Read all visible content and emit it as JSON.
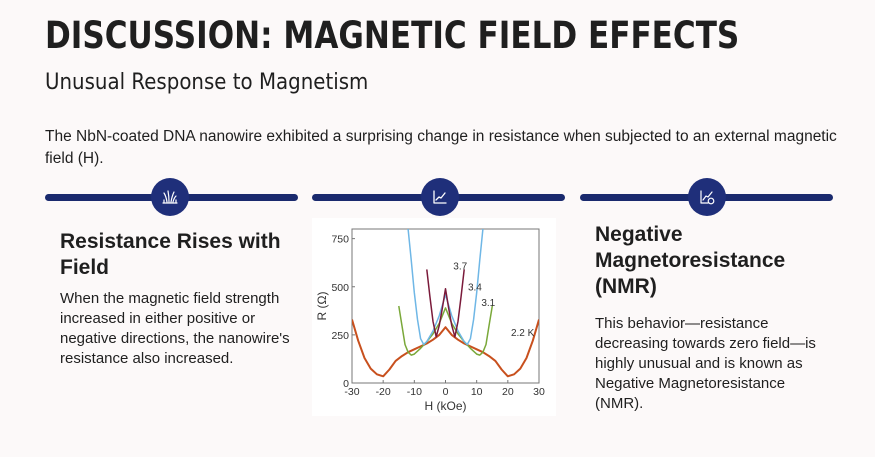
{
  "header": {
    "title": "DISCUSSION: MAGNETIC FIELD EFFECTS",
    "subtitle": "Unusual Response to Magnetism"
  },
  "intro": "The NbN-coated DNA nanowire exhibited a surprising change in resistance when subjected to an external magnetic field (H).",
  "colors": {
    "background": "#fcf9f9",
    "accent": "#1f2f7a",
    "text": "#1f1f1f"
  },
  "timeline": [
    {
      "icon": "grass-icon"
    },
    {
      "icon": "line-chart-icon"
    },
    {
      "icon": "chart-search-icon"
    }
  ],
  "columns": {
    "left": {
      "heading": "Resistance Rises with Field",
      "body": "When the magnetic field strength increased in either positive or negative directions, the nanowire's resistance also increased."
    },
    "right": {
      "heading": "Negative Magnetoresistance (NMR)",
      "body": "This behavior—resistance decreasing towards zero field—is highly unusual and is known as Negative Magnetoresistance (NMR)."
    }
  },
  "chart_data": {
    "type": "line",
    "title": "",
    "xlabel": "H (kOe)",
    "ylabel": "R (Ω)",
    "xlim": [
      -30,
      30
    ],
    "ylim": [
      0,
      800
    ],
    "xticks": [
      -30,
      -20,
      -10,
      0,
      10,
      20,
      30
    ],
    "yticks": [
      0,
      250,
      500,
      750
    ],
    "grid": false,
    "series": [
      {
        "name": "2.2 K",
        "color": "#c8501e",
        "x": [
          -30,
          -28,
          -26,
          -24,
          -22,
          -21,
          -20,
          -18,
          -16,
          -14,
          -12,
          -10,
          -8,
          -6,
          -4,
          -2,
          0,
          2,
          4,
          6,
          8,
          10,
          12,
          14,
          16,
          18,
          20,
          21,
          22,
          24,
          26,
          28,
          30
        ],
        "y": [
          330,
          220,
          130,
          75,
          45,
          40,
          35,
          70,
          115,
          140,
          160,
          175,
          190,
          205,
          225,
          250,
          290,
          250,
          225,
          205,
          190,
          175,
          160,
          140,
          115,
          70,
          35,
          40,
          45,
          75,
          130,
          220,
          330
        ]
      },
      {
        "name": "3.1",
        "color": "#7aa83a",
        "x": [
          -15,
          -14,
          -13,
          -12,
          -11,
          -10,
          -8,
          -6,
          -4,
          -2,
          0,
          2,
          4,
          6,
          8,
          10,
          11,
          12,
          13,
          14,
          15
        ],
        "y": [
          400,
          300,
          200,
          160,
          145,
          150,
          180,
          215,
          255,
          310,
          390,
          310,
          255,
          215,
          180,
          150,
          145,
          160,
          200,
          300,
          400
        ]
      },
      {
        "name": "3.4",
        "color": "#6fb7e6",
        "x": [
          -12,
          -11,
          -10,
          -9,
          -8,
          -7,
          -6,
          -4,
          -2,
          0,
          2,
          4,
          6,
          7,
          8,
          9,
          10,
          11,
          12
        ],
        "y": [
          800,
          640,
          470,
          330,
          230,
          200,
          215,
          270,
          350,
          460,
          350,
          270,
          215,
          200,
          230,
          330,
          470,
          640,
          800
        ]
      },
      {
        "name": "3.7",
        "color": "#7a1a3a",
        "x": [
          -6,
          -5,
          -4,
          -3,
          -2,
          -1,
          0,
          1,
          2,
          3,
          4,
          5,
          6
        ],
        "y": [
          590,
          450,
          320,
          240,
          300,
          390,
          490,
          390,
          300,
          240,
          320,
          450,
          590
        ]
      }
    ],
    "annotations": [
      {
        "text": "3.7",
        "x": 2.5,
        "y": 590
      },
      {
        "text": "3.4",
        "x": 7.2,
        "y": 480
      },
      {
        "text": "3.1",
        "x": 11.5,
        "y": 400
      },
      {
        "text": "2.2 K",
        "x": 21,
        "y": 245
      }
    ]
  }
}
